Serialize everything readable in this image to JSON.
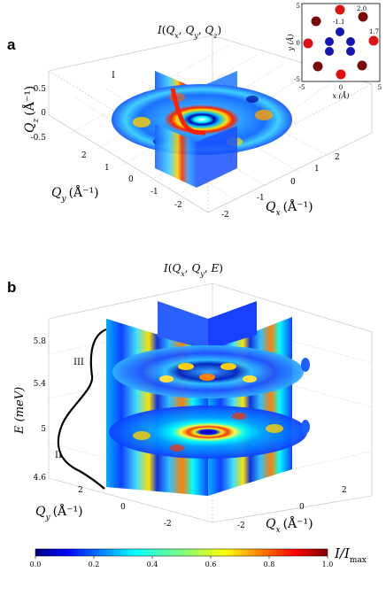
{
  "panel_a": {
    "label": "a",
    "title": "I(Qₓ, Qᵧ, Qₔ)",
    "title_parts": {
      "f": "I",
      "args": [
        "Q",
        "x",
        "Q",
        "y",
        "Q",
        "z"
      ]
    },
    "qz_label_main": "Q",
    "qz_label_sub": "z",
    "qz_label_unit": "(Å⁻¹)",
    "qy_label_main": "Q",
    "qy_label_sub": "y",
    "qy_label_unit": "(Å⁻¹)",
    "qx_label_main": "Q",
    "qx_label_sub": "x",
    "qx_label_unit": "(Å⁻¹)",
    "qz_ticks": [
      "0.5",
      "0",
      "-0.5"
    ],
    "qy_ticks": [
      "2",
      "1",
      "0",
      "-1",
      "-2"
    ],
    "qx_ticks": [
      "-2",
      "-1",
      "0",
      "1",
      "2"
    ],
    "region_label": "I"
  },
  "inset": {
    "xlabel": "x (Å)",
    "ylabel": "y (Å)",
    "x_ticks": [
      "-5",
      "0",
      "5"
    ],
    "y_ticks": [
      "5",
      "0",
      "-5"
    ],
    "annotations": [
      "2.0",
      "-1.1",
      "1.7"
    ],
    "colors": {
      "red": "#dd1111",
      "dark_red": "#7a0a0a",
      "blue": "#1515b5"
    }
  },
  "panel_b": {
    "label": "b",
    "title_parts": {
      "f": "I",
      "args": [
        "Q",
        "x",
        "Q",
        "y",
        "E"
      ]
    },
    "e_label": "E (meV)",
    "e_ticks": [
      "5.8",
      "5.4",
      "5",
      "4.6"
    ],
    "qy_label_main": "Q",
    "qy_label_sub": "y",
    "qy_label_unit": "(Å⁻¹)",
    "qx_label_main": "Q",
    "qx_label_sub": "x",
    "qx_label_unit": "(Å⁻¹)",
    "qy_ticks": [
      "2",
      "0",
      "-2"
    ],
    "qx_ticks": [
      "-2",
      "0",
      "2"
    ],
    "region_labels": [
      "III",
      "II"
    ]
  },
  "colorbar": {
    "ticks": [
      "0.0",
      "0.2",
      "0.4",
      "0.6",
      "0.8",
      "1.0"
    ],
    "label_main": "I/I",
    "label_sub": "max",
    "colors": [
      "#00007f",
      "#0000ff",
      "#007fff",
      "#00ffff",
      "#7fff7f",
      "#ffff00",
      "#ff7f00",
      "#ff0000",
      "#7f0000"
    ]
  }
}
